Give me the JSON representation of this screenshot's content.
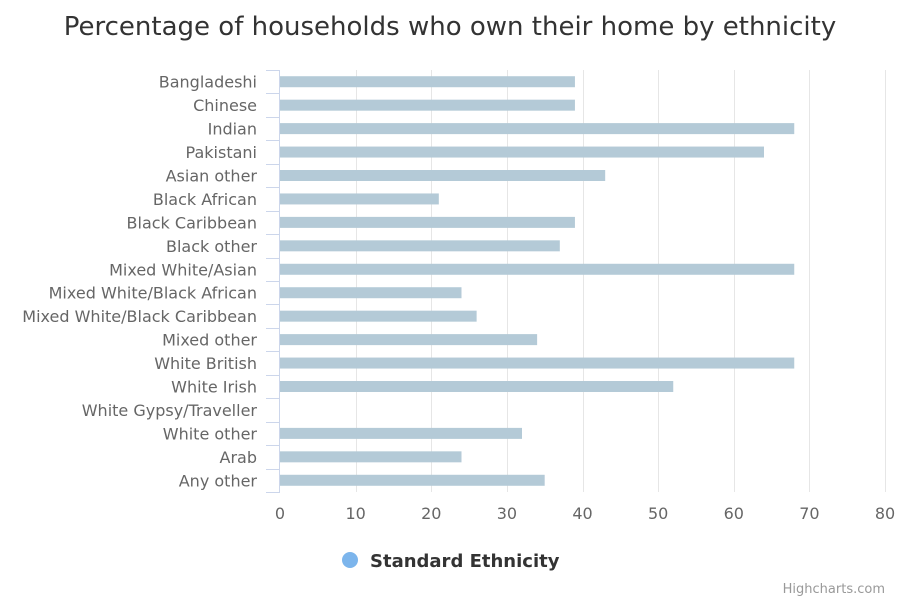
{
  "chart_data": {
    "type": "bar",
    "title": "Percentage of households who own their home by ethnicity",
    "categories": [
      "Bangladeshi",
      "Chinese",
      "Indian",
      "Pakistani",
      "Asian other",
      "Black African",
      "Black Caribbean",
      "Black other",
      "Mixed White/Asian",
      "Mixed White/Black African",
      "Mixed White/Black Caribbean",
      "Mixed other",
      "White British",
      "White Irish",
      "White Gypsy/Traveller",
      "White other",
      "Arab",
      "Any other"
    ],
    "series": [
      {
        "name": "Standard Ethnicity",
        "color": "#b4cad7",
        "values": [
          39,
          39,
          68,
          64,
          43,
          21,
          39,
          37,
          68,
          24,
          26,
          34,
          68,
          52,
          null,
          32,
          24,
          35
        ]
      }
    ],
    "xaxis_ticks": [
      0,
      10,
      20,
      30,
      40,
      50,
      60,
      70,
      80
    ],
    "xlim": [
      0,
      80
    ],
    "grid": true,
    "legend": {
      "position": "bottom-center",
      "marker_color": "#7cb5ec",
      "label": "Standard Ethnicity"
    },
    "credits": "Highcharts.com"
  }
}
